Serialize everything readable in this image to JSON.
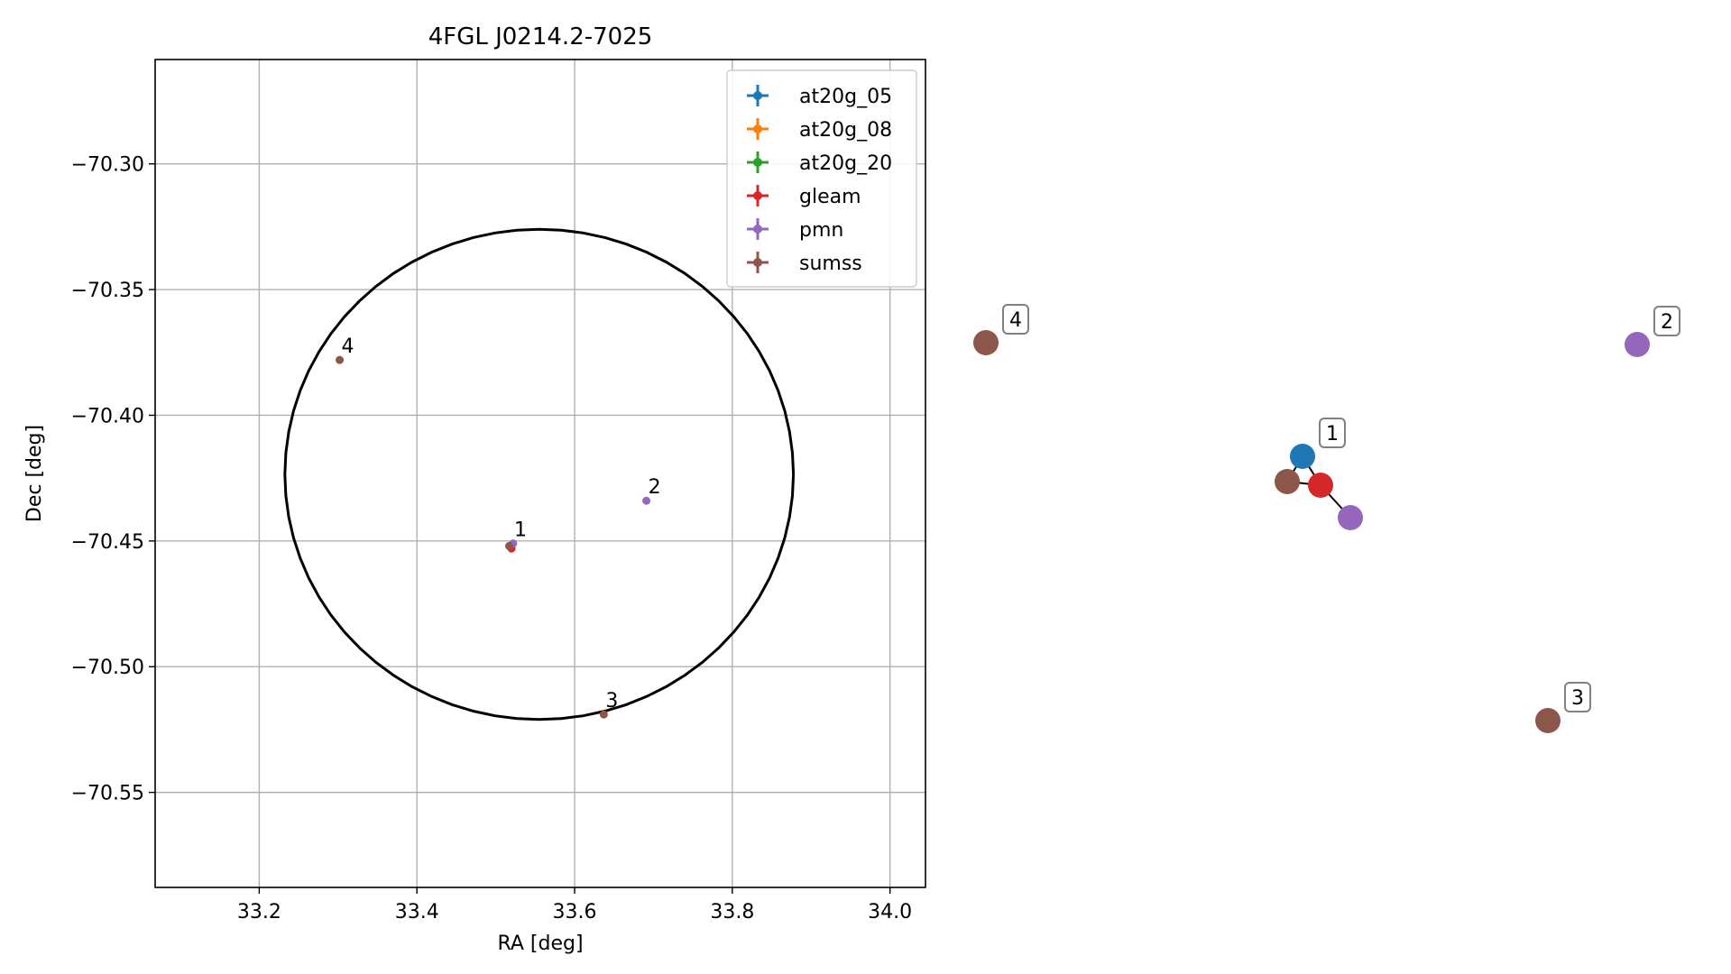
{
  "chart_data": [
    {
      "type": "scatter",
      "title": "4FGL J0214.2-7025",
      "xlabel": "RA [deg]",
      "ylabel": "Dec [deg]",
      "xlim": [
        33.068,
        34.045
      ],
      "ylim": [
        -70.5878,
        -70.2585
      ],
      "xticks": [
        33.2,
        33.4,
        33.6,
        33.8,
        34.0
      ],
      "xtick_labels": [
        "33.2",
        "33.4",
        "33.6",
        "33.8",
        "34.0"
      ],
      "yticks": [
        -70.3,
        -70.35,
        -70.4,
        -70.45,
        -70.5,
        -70.55
      ],
      "ytick_labels": [
        "−70.30",
        "−70.35",
        "−70.40",
        "−70.45",
        "−70.50",
        "−70.55"
      ],
      "grid": true,
      "legend_position": "top-right",
      "circle": {
        "center_ra": 33.555,
        "center_dec": -70.4235,
        "radius_ra": 0.3225,
        "radius_dec": 0.0975
      },
      "series": [
        {
          "name": "at20g_05",
          "color": "#1f77b4",
          "points": []
        },
        {
          "name": "at20g_08",
          "color": "#ff7f0e",
          "points": []
        },
        {
          "name": "at20g_20",
          "color": "#2ca02c",
          "points": []
        },
        {
          "name": "gleam",
          "color": "#d62728",
          "points": [
            {
              "x": 33.52,
              "y": -70.453
            }
          ]
        },
        {
          "name": "pmn",
          "color": "#9467bd",
          "points": [
            {
              "x": 33.522,
              "y": -70.451
            },
            {
              "x": 33.691,
              "y": -70.434
            }
          ]
        },
        {
          "name": "sumss",
          "color": "#8c564b",
          "points": [
            {
              "x": 33.517,
              "y": -70.452
            },
            {
              "x": 33.637,
              "y": -70.519
            },
            {
              "x": 33.302,
              "y": -70.378
            }
          ]
        }
      ],
      "point_labels": [
        {
          "text": "1",
          "x": 33.521,
          "y": -70.451
        },
        {
          "text": "2",
          "x": 33.691,
          "y": -70.434
        },
        {
          "text": "3",
          "x": 33.637,
          "y": -70.519
        },
        {
          "text": "4",
          "x": 33.302,
          "y": -70.378
        }
      ]
    },
    {
      "type": "network",
      "nodes": [
        {
          "id": "at20g_05",
          "color": "#1f77b4"
        },
        {
          "id": "gleam",
          "color": "#d62728"
        },
        {
          "id": "sumss",
          "color": "#8c564b"
        },
        {
          "id": "pmn",
          "color": "#9467bd"
        },
        {
          "id": "pmn_2",
          "color": "#9467bd"
        },
        {
          "id": "sumss_3",
          "color": "#8c564b"
        },
        {
          "id": "sumss_4",
          "color": "#8c564b"
        }
      ],
      "edges": [
        [
          "at20g_05",
          "gleam"
        ],
        [
          "at20g_05",
          "sumss"
        ],
        [
          "gleam",
          "sumss"
        ],
        [
          "gleam",
          "pmn"
        ]
      ],
      "group_labels": [
        {
          "text": "1",
          "node": "at20g_05"
        },
        {
          "text": "2",
          "node": "pmn_2"
        },
        {
          "text": "3",
          "node": "sumss_3"
        },
        {
          "text": "4",
          "node": "sumss_4"
        }
      ]
    }
  ]
}
